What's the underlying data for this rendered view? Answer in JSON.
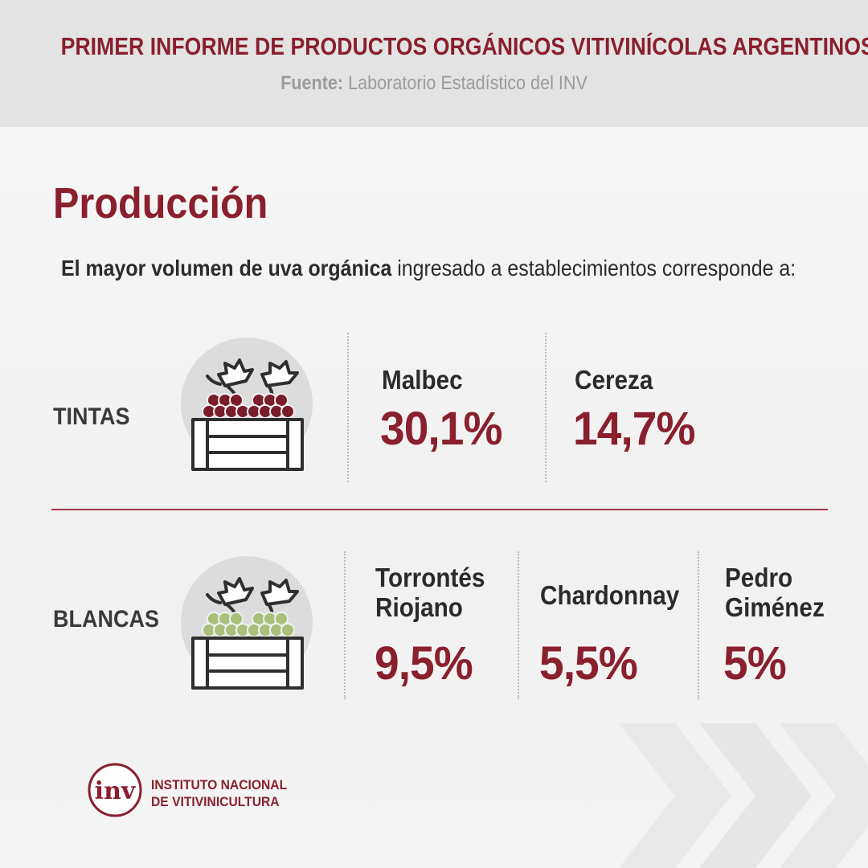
{
  "header": {
    "title": "PRIMER INFORME DE PRODUCTOS ORGÁNICOS VITIVINÍCOLAS ARGENTINOS",
    "source_label": "Fuente:",
    "source_text": "Laboratorio Estadístico del INV"
  },
  "section": {
    "title": "Producción",
    "intro_bold": "El mayor volumen de uva orgánica",
    "intro_rest": " ingresado a establecimientos corresponde a:"
  },
  "tintas": {
    "label": "TINTAS",
    "icon": "red-grapes-crate-icon",
    "items": [
      {
        "variety": "Malbec",
        "pct": "30,1%"
      },
      {
        "variety": "Cereza",
        "pct": "14,7%"
      }
    ]
  },
  "blancas": {
    "label": "BLANCAS",
    "icon": "white-grapes-crate-icon",
    "items": [
      {
        "variety": "Torrontés\nRiojano",
        "pct": "9,5%"
      },
      {
        "variety": "Chardonnay",
        "pct": "5,5%"
      },
      {
        "variety": "Pedro\nGiménez",
        "pct": "5%"
      }
    ]
  },
  "logo": {
    "mark": "inv",
    "line1": "INSTITUTO NACIONAL",
    "line2": "DE VITIVINICULTURA"
  },
  "colors": {
    "accent": "#8a1f2e",
    "red_grape": "#7a1c2a",
    "white_grape": "#a9c07a",
    "header_bg": "#e3e3e3"
  }
}
